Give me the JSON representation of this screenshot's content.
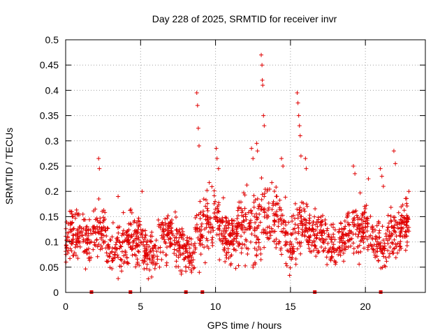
{
  "chart_data": {
    "type": "scatter",
    "title": "Day 228 of 2025, SRMTID for receiver invr",
    "xlabel": "GPS time / hours",
    "ylabel": "SRMTID / TECUs",
    "xlim": [
      0,
      24
    ],
    "ylim": [
      0,
      0.5
    ],
    "x_ticks": [
      0,
      5,
      10,
      15,
      20
    ],
    "y_ticks": [
      0,
      0.05,
      0.1,
      0.15,
      0.2,
      0.25,
      0.3,
      0.35,
      0.4,
      0.45,
      0.5
    ],
    "x_tick_labels": [
      "0",
      "5",
      "10",
      "15",
      "20"
    ],
    "y_tick_labels": [
      "0",
      "0.05",
      "0.1",
      "0.15",
      "0.2",
      "0.25",
      "0.3",
      "0.35",
      "0.4",
      "0.45",
      "0.5"
    ],
    "grid": true,
    "marker": "+",
    "series_color": "#e00000",
    "gap_markers_x": [
      1.7,
      4.3,
      8.0,
      9.1,
      16.6,
      21.0
    ],
    "profile": [
      [
        0.0,
        0.1,
        0.03
      ],
      [
        0.5,
        0.11,
        0.035
      ],
      [
        1.0,
        0.12,
        0.03
      ],
      [
        1.5,
        0.1,
        0.03
      ],
      [
        2.0,
        0.12,
        0.035
      ],
      [
        2.5,
        0.13,
        0.03
      ],
      [
        3.0,
        0.07,
        0.03
      ],
      [
        3.5,
        0.09,
        0.035
      ],
      [
        4.0,
        0.1,
        0.03
      ],
      [
        4.5,
        0.1,
        0.03
      ],
      [
        5.0,
        0.11,
        0.035
      ],
      [
        5.5,
        0.07,
        0.025
      ],
      [
        6.0,
        0.08,
        0.03
      ],
      [
        6.5,
        0.11,
        0.03
      ],
      [
        7.0,
        0.12,
        0.03
      ],
      [
        7.5,
        0.1,
        0.03
      ],
      [
        8.0,
        0.08,
        0.025
      ],
      [
        8.5,
        0.08,
        0.03
      ],
      [
        9.0,
        0.13,
        0.05
      ],
      [
        9.5,
        0.13,
        0.04
      ],
      [
        10.0,
        0.15,
        0.05
      ],
      [
        10.5,
        0.12,
        0.04
      ],
      [
        11.0,
        0.1,
        0.035
      ],
      [
        11.5,
        0.13,
        0.04
      ],
      [
        12.0,
        0.13,
        0.045
      ],
      [
        12.5,
        0.12,
        0.045
      ],
      [
        13.0,
        0.15,
        0.05
      ],
      [
        13.5,
        0.15,
        0.04
      ],
      [
        14.0,
        0.15,
        0.04
      ],
      [
        14.5,
        0.12,
        0.04
      ],
      [
        15.0,
        0.09,
        0.035
      ],
      [
        15.5,
        0.14,
        0.04
      ],
      [
        16.0,
        0.13,
        0.035
      ],
      [
        16.5,
        0.11,
        0.03
      ],
      [
        17.0,
        0.12,
        0.03
      ],
      [
        17.5,
        0.1,
        0.03
      ],
      [
        18.0,
        0.08,
        0.025
      ],
      [
        18.5,
        0.11,
        0.03
      ],
      [
        19.0,
        0.13,
        0.035
      ],
      [
        19.5,
        0.12,
        0.035
      ],
      [
        20.0,
        0.13,
        0.035
      ],
      [
        20.5,
        0.11,
        0.03
      ],
      [
        21.0,
        0.09,
        0.035
      ],
      [
        21.5,
        0.1,
        0.035
      ],
      [
        22.0,
        0.11,
        0.035
      ],
      [
        22.5,
        0.13,
        0.035
      ],
      [
        22.9,
        0.14,
        0.035
      ]
    ],
    "spikes": [
      [
        2.2,
        0.265
      ],
      [
        2.25,
        0.245
      ],
      [
        3.5,
        0.19
      ],
      [
        5.1,
        0.2
      ],
      [
        8.75,
        0.395
      ],
      [
        8.8,
        0.37
      ],
      [
        8.85,
        0.325
      ],
      [
        8.9,
        0.29
      ],
      [
        10.05,
        0.285
      ],
      [
        10.1,
        0.265
      ],
      [
        10.2,
        0.245
      ],
      [
        12.4,
        0.285
      ],
      [
        12.5,
        0.265
      ],
      [
        12.75,
        0.295
      ],
      [
        12.8,
        0.28
      ],
      [
        13.05,
        0.47
      ],
      [
        13.1,
        0.45
      ],
      [
        13.12,
        0.42
      ],
      [
        13.15,
        0.41
      ],
      [
        13.2,
        0.35
      ],
      [
        13.25,
        0.33
      ],
      [
        14.4,
        0.265
      ],
      [
        14.5,
        0.25
      ],
      [
        15.45,
        0.395
      ],
      [
        15.5,
        0.375
      ],
      [
        15.55,
        0.35
      ],
      [
        15.6,
        0.33
      ],
      [
        15.65,
        0.31
      ],
      [
        15.7,
        0.27
      ],
      [
        16.0,
        0.265
      ],
      [
        16.05,
        0.245
      ],
      [
        19.2,
        0.25
      ],
      [
        19.3,
        0.235
      ],
      [
        20.2,
        0.225
      ],
      [
        21.0,
        0.245
      ],
      [
        21.1,
        0.23
      ],
      [
        21.2,
        0.21
      ],
      [
        21.9,
        0.28
      ],
      [
        22.0,
        0.255
      ],
      [
        22.9,
        0.2
      ]
    ],
    "samples": 1650,
    "seed": 228
  }
}
